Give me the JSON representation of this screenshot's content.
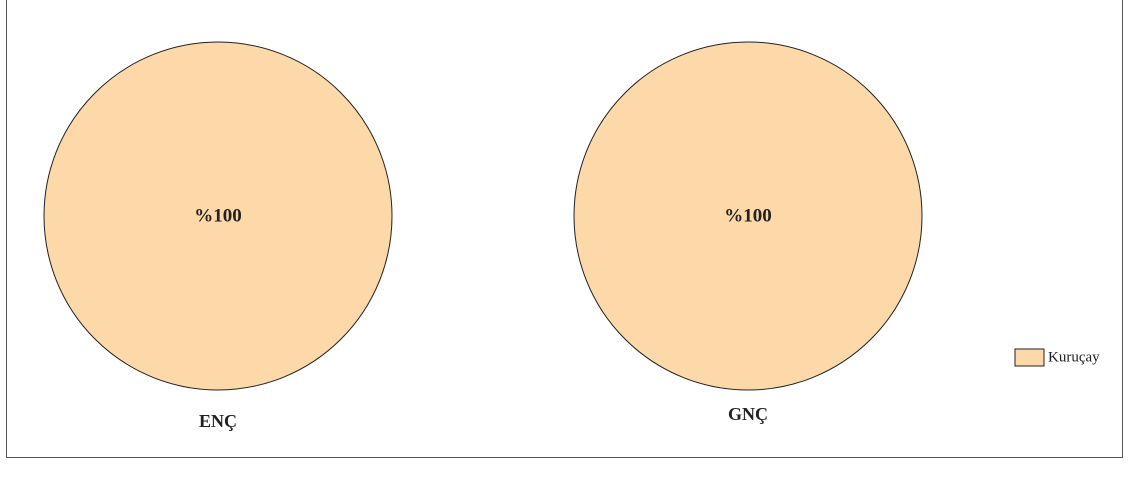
{
  "chart_data": [
    {
      "type": "pie",
      "xlabel": "ENÇ",
      "slices": [
        {
          "name": "Kuruçay",
          "value": 100,
          "label": "%100",
          "color": "#fdd8a8"
        }
      ]
    },
    {
      "type": "pie",
      "xlabel": "GNÇ",
      "slices": [
        {
          "name": "Kuruçay",
          "value": 100,
          "label": "%100",
          "color": "#fdd8a8"
        }
      ]
    }
  ],
  "legend": {
    "placement": "right",
    "items": [
      {
        "label": "Kuruçay",
        "color": "#fdd8a8"
      }
    ]
  }
}
